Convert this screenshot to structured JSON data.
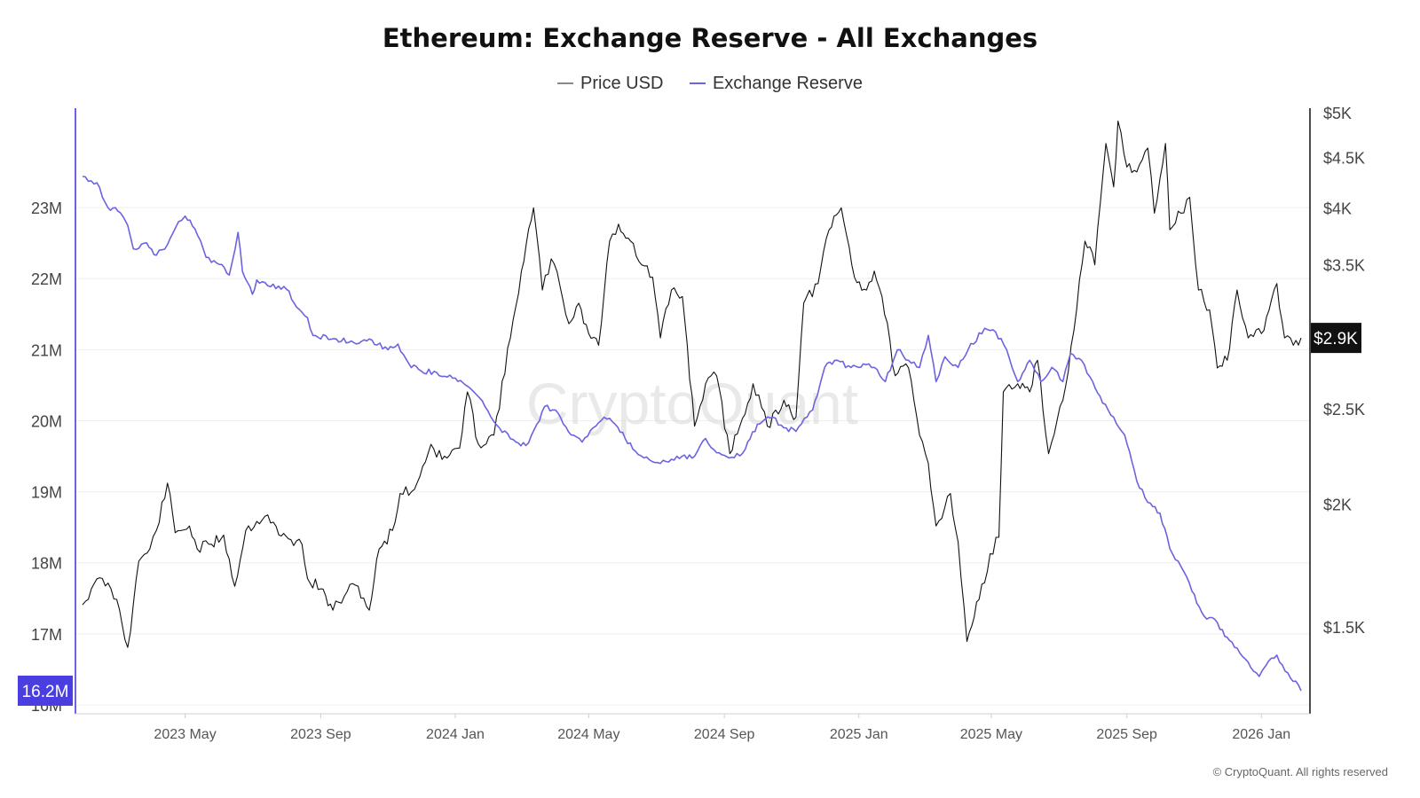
{
  "title": "Ethereum: Exchange Reserve - All Exchanges",
  "legend": [
    {
      "label": "Price USD",
      "color": "#888888"
    },
    {
      "label": "Exchange Reserve",
      "color": "#6c63e0"
    }
  ],
  "watermark": "CryptoQuant",
  "copyright": "© CryptoQuant. All rights reserved",
  "colors": {
    "reserve": "#6c63e0",
    "price": "#111111",
    "badge_reserve": "#4b3ee0",
    "badge_price": "#111111"
  },
  "chart_data": {
    "type": "line",
    "title": "Ethereum: Exchange Reserve - All Exchanges",
    "x_range": [
      "2023-01-28",
      "2026-02-06"
    ],
    "x_ticks": [
      {
        "date": "2023-05-01",
        "label": "2023 May"
      },
      {
        "date": "2023-09-01",
        "label": "2023 Sep"
      },
      {
        "date": "2024-01-01",
        "label": "2024 Jan"
      },
      {
        "date": "2024-05-01",
        "label": "2024 May"
      },
      {
        "date": "2024-09-01",
        "label": "2024 Sep"
      },
      {
        "date": "2025-01-01",
        "label": "2025 Jan"
      },
      {
        "date": "2025-05-01",
        "label": "2025 May"
      },
      {
        "date": "2025-09-01",
        "label": "2025 Sep"
      },
      {
        "date": "2026-01-01",
        "label": "2026 Jan"
      }
    ],
    "left_axis": {
      "series": "Exchange Reserve",
      "ylim": [
        16000000,
        23900000
      ],
      "ticks": [
        {
          "value": 16000000,
          "label": "16M"
        },
        {
          "value": 17000000,
          "label": "17M"
        },
        {
          "value": 18000000,
          "label": "18M"
        },
        {
          "value": 19000000,
          "label": "19M"
        },
        {
          "value": 20000000,
          "label": "20M"
        },
        {
          "value": 21000000,
          "label": "21M"
        },
        {
          "value": 22000000,
          "label": "22M"
        },
        {
          "value": 23000000,
          "label": "23M"
        }
      ],
      "current_label": "16.2M",
      "current_value": 16200000
    },
    "right_axis": {
      "series": "Price USD",
      "scale": "log",
      "ylim": [
        1250,
        5050
      ],
      "ticks": [
        {
          "value": 1500,
          "label": "$1.5K"
        },
        {
          "value": 2000,
          "label": "$2K"
        },
        {
          "value": 2500,
          "label": "$2.5K"
        },
        {
          "value": 3500,
          "label": "$3.5K"
        },
        {
          "value": 4000,
          "label": "$4K"
        },
        {
          "value": 4500,
          "label": "$4.5K"
        },
        {
          "value": 5000,
          "label": "$5K"
        }
      ],
      "current_label": "$2.9K",
      "current_value": 2950
    },
    "grid": true,
    "legend_position": "top-center",
    "series": [
      {
        "name": "Exchange Reserve",
        "axis": "left",
        "points": [
          [
            "2023-01-28",
            23440000
          ],
          [
            "2023-02-10",
            23350000
          ],
          [
            "2023-02-20",
            23000000
          ],
          [
            "2023-03-01",
            22950000
          ],
          [
            "2023-03-10",
            22750000
          ],
          [
            "2023-03-15",
            22420000
          ],
          [
            "2023-03-25",
            22500000
          ],
          [
            "2023-04-05",
            22330000
          ],
          [
            "2023-04-15",
            22480000
          ],
          [
            "2023-04-25",
            22800000
          ],
          [
            "2023-05-01",
            22880000
          ],
          [
            "2023-05-10",
            22700000
          ],
          [
            "2023-05-20",
            22300000
          ],
          [
            "2023-06-01",
            22200000
          ],
          [
            "2023-06-10",
            22050000
          ],
          [
            "2023-06-18",
            22650000
          ],
          [
            "2023-06-22",
            22100000
          ],
          [
            "2023-07-01",
            21780000
          ],
          [
            "2023-07-05",
            21980000
          ],
          [
            "2023-07-15",
            21900000
          ],
          [
            "2023-08-01",
            21850000
          ],
          [
            "2023-08-10",
            21600000
          ],
          [
            "2023-08-20",
            21450000
          ],
          [
            "2023-08-25",
            21200000
          ],
          [
            "2023-09-15",
            21150000
          ],
          [
            "2023-10-01",
            21100000
          ],
          [
            "2023-10-15",
            21150000
          ],
          [
            "2023-11-01",
            21000000
          ],
          [
            "2023-11-10",
            21080000
          ],
          [
            "2023-11-20",
            20800000
          ],
          [
            "2023-12-01",
            20700000
          ],
          [
            "2023-12-15",
            20680000
          ],
          [
            "2024-01-01",
            20600000
          ],
          [
            "2024-01-15",
            20450000
          ],
          [
            "2024-01-28",
            20200000
          ],
          [
            "2024-02-10",
            19900000
          ],
          [
            "2024-02-25",
            19700000
          ],
          [
            "2024-03-05",
            19650000
          ],
          [
            "2024-03-15",
            19950000
          ],
          [
            "2024-03-22",
            20200000
          ],
          [
            "2024-04-01",
            20150000
          ],
          [
            "2024-04-15",
            19800000
          ],
          [
            "2024-04-25",
            19700000
          ],
          [
            "2024-05-05",
            19900000
          ],
          [
            "2024-05-15",
            20050000
          ],
          [
            "2024-05-25",
            19950000
          ],
          [
            "2024-06-10",
            19600000
          ],
          [
            "2024-06-25",
            19450000
          ],
          [
            "2024-07-05",
            19400000
          ],
          [
            "2024-07-20",
            19500000
          ],
          [
            "2024-08-05",
            19500000
          ],
          [
            "2024-08-15",
            19750000
          ],
          [
            "2024-08-25",
            19550000
          ],
          [
            "2024-09-10",
            19480000
          ],
          [
            "2024-09-20",
            19600000
          ],
          [
            "2024-10-01",
            19950000
          ],
          [
            "2024-10-15",
            20050000
          ],
          [
            "2024-10-25",
            19900000
          ],
          [
            "2024-11-05",
            19850000
          ],
          [
            "2024-11-20",
            20150000
          ],
          [
            "2024-12-01",
            20750000
          ],
          [
            "2024-12-10",
            20850000
          ],
          [
            "2024-12-25",
            20750000
          ],
          [
            "2025-01-05",
            20800000
          ],
          [
            "2025-01-15",
            20750000
          ],
          [
            "2025-01-25",
            20550000
          ],
          [
            "2025-02-05",
            21000000
          ],
          [
            "2025-02-15",
            20850000
          ],
          [
            "2025-02-25",
            20750000
          ],
          [
            "2025-03-05",
            21200000
          ],
          [
            "2025-03-12",
            20550000
          ],
          [
            "2025-03-20",
            20900000
          ],
          [
            "2025-04-01",
            20750000
          ],
          [
            "2025-04-10",
            21000000
          ],
          [
            "2025-04-25",
            21300000
          ],
          [
            "2025-05-05",
            21250000
          ],
          [
            "2025-05-15",
            21000000
          ],
          [
            "2025-05-25",
            20550000
          ],
          [
            "2025-06-05",
            20850000
          ],
          [
            "2025-06-15",
            20550000
          ],
          [
            "2025-06-25",
            20750000
          ],
          [
            "2025-07-05",
            20550000
          ],
          [
            "2025-07-12",
            20950000
          ],
          [
            "2025-07-22",
            20850000
          ],
          [
            "2025-08-01",
            20550000
          ],
          [
            "2025-08-10",
            20250000
          ],
          [
            "2025-08-20",
            20050000
          ],
          [
            "2025-08-30",
            19800000
          ],
          [
            "2025-09-10",
            19150000
          ],
          [
            "2025-09-20",
            18850000
          ],
          [
            "2025-10-01",
            18700000
          ],
          [
            "2025-10-10",
            18200000
          ],
          [
            "2025-10-20",
            17950000
          ],
          [
            "2025-10-30",
            17600000
          ],
          [
            "2025-11-10",
            17250000
          ],
          [
            "2025-11-20",
            17200000
          ],
          [
            "2025-12-01",
            16950000
          ],
          [
            "2025-12-10",
            16800000
          ],
          [
            "2025-12-20",
            16600000
          ],
          [
            "2025-12-30",
            16400000
          ],
          [
            "2026-01-05",
            16550000
          ],
          [
            "2026-01-15",
            16700000
          ],
          [
            "2026-01-25",
            16450000
          ],
          [
            "2026-02-06",
            16200000
          ]
        ]
      },
      {
        "name": "Price USD",
        "axis": "right",
        "points": [
          [
            "2023-01-28",
            1580
          ],
          [
            "2023-02-05",
            1640
          ],
          [
            "2023-02-15",
            1680
          ],
          [
            "2023-02-28",
            1600
          ],
          [
            "2023-03-10",
            1430
          ],
          [
            "2023-03-20",
            1750
          ],
          [
            "2023-03-30",
            1800
          ],
          [
            "2023-04-05",
            1880
          ],
          [
            "2023-04-15",
            2100
          ],
          [
            "2023-04-22",
            1870
          ],
          [
            "2023-05-05",
            1900
          ],
          [
            "2023-05-12",
            1800
          ],
          [
            "2023-05-25",
            1820
          ],
          [
            "2023-06-05",
            1860
          ],
          [
            "2023-06-15",
            1650
          ],
          [
            "2023-06-25",
            1880
          ],
          [
            "2023-07-05",
            1920
          ],
          [
            "2023-07-15",
            1950
          ],
          [
            "2023-07-25",
            1860
          ],
          [
            "2023-08-05",
            1840
          ],
          [
            "2023-08-15",
            1820
          ],
          [
            "2023-08-20",
            1680
          ],
          [
            "2023-09-01",
            1640
          ],
          [
            "2023-09-12",
            1560
          ],
          [
            "2023-09-25",
            1630
          ],
          [
            "2023-10-05",
            1650
          ],
          [
            "2023-10-15",
            1560
          ],
          [
            "2023-10-24",
            1800
          ],
          [
            "2023-11-05",
            1880
          ],
          [
            "2023-11-12",
            2050
          ],
          [
            "2023-11-25",
            2070
          ],
          [
            "2023-12-10",
            2300
          ],
          [
            "2023-12-20",
            2220
          ],
          [
            "2024-01-05",
            2280
          ],
          [
            "2024-01-12",
            2600
          ],
          [
            "2024-01-22",
            2300
          ],
          [
            "2024-02-05",
            2350
          ],
          [
            "2024-02-20",
            2950
          ],
          [
            "2024-03-01",
            3450
          ],
          [
            "2024-03-12",
            4000
          ],
          [
            "2024-03-20",
            3300
          ],
          [
            "2024-03-28",
            3550
          ],
          [
            "2024-04-05",
            3330
          ],
          [
            "2024-04-13",
            3050
          ],
          [
            "2024-04-22",
            3200
          ],
          [
            "2024-05-01",
            2980
          ],
          [
            "2024-05-10",
            2900
          ],
          [
            "2024-05-20",
            3700
          ],
          [
            "2024-05-28",
            3850
          ],
          [
            "2024-06-08",
            3700
          ],
          [
            "2024-06-18",
            3500
          ],
          [
            "2024-06-28",
            3400
          ],
          [
            "2024-07-05",
            2950
          ],
          [
            "2024-07-15",
            3300
          ],
          [
            "2024-07-25",
            3250
          ],
          [
            "2024-08-05",
            2400
          ],
          [
            "2024-08-15",
            2650
          ],
          [
            "2024-08-25",
            2700
          ],
          [
            "2024-09-06",
            2250
          ],
          [
            "2024-09-15",
            2400
          ],
          [
            "2024-09-27",
            2650
          ],
          [
            "2024-10-10",
            2400
          ],
          [
            "2024-10-25",
            2550
          ],
          [
            "2024-11-05",
            2450
          ],
          [
            "2024-11-12",
            3200
          ],
          [
            "2024-11-25",
            3350
          ],
          [
            "2024-12-05",
            3800
          ],
          [
            "2024-12-16",
            4000
          ],
          [
            "2024-12-28",
            3400
          ],
          [
            "2025-01-08",
            3300
          ],
          [
            "2025-01-15",
            3450
          ],
          [
            "2025-01-22",
            3250
          ],
          [
            "2025-02-03",
            2700
          ],
          [
            "2025-02-15",
            2750
          ],
          [
            "2025-02-25",
            2350
          ],
          [
            "2025-03-05",
            2200
          ],
          [
            "2025-03-12",
            1900
          ],
          [
            "2025-03-25",
            2050
          ],
          [
            "2025-04-01",
            1830
          ],
          [
            "2025-04-09",
            1450
          ],
          [
            "2025-04-20",
            1600
          ],
          [
            "2025-04-30",
            1780
          ],
          [
            "2025-05-08",
            1850
          ],
          [
            "2025-05-12",
            2600
          ],
          [
            "2025-05-25",
            2650
          ],
          [
            "2025-06-05",
            2600
          ],
          [
            "2025-06-12",
            2800
          ],
          [
            "2025-06-22",
            2250
          ],
          [
            "2025-07-05",
            2550
          ],
          [
            "2025-07-15",
            3000
          ],
          [
            "2025-07-25",
            3700
          ],
          [
            "2025-08-03",
            3500
          ],
          [
            "2025-08-13",
            4650
          ],
          [
            "2025-08-20",
            4200
          ],
          [
            "2025-08-24",
            4900
          ],
          [
            "2025-09-01",
            4400
          ],
          [
            "2025-09-10",
            4350
          ],
          [
            "2025-09-20",
            4600
          ],
          [
            "2025-09-26",
            3950
          ],
          [
            "2025-10-06",
            4650
          ],
          [
            "2025-10-10",
            3800
          ],
          [
            "2025-10-20",
            3950
          ],
          [
            "2025-10-28",
            4100
          ],
          [
            "2025-11-05",
            3300
          ],
          [
            "2025-11-15",
            3150
          ],
          [
            "2025-11-22",
            2750
          ],
          [
            "2025-12-01",
            2800
          ],
          [
            "2025-12-10",
            3300
          ],
          [
            "2025-12-20",
            2950
          ],
          [
            "2026-01-01",
            2980
          ],
          [
            "2026-01-08",
            3150
          ],
          [
            "2026-01-15",
            3350
          ],
          [
            "2026-01-22",
            2950
          ],
          [
            "2026-01-30",
            2900
          ],
          [
            "2026-02-06",
            2950
          ]
        ]
      }
    ]
  }
}
